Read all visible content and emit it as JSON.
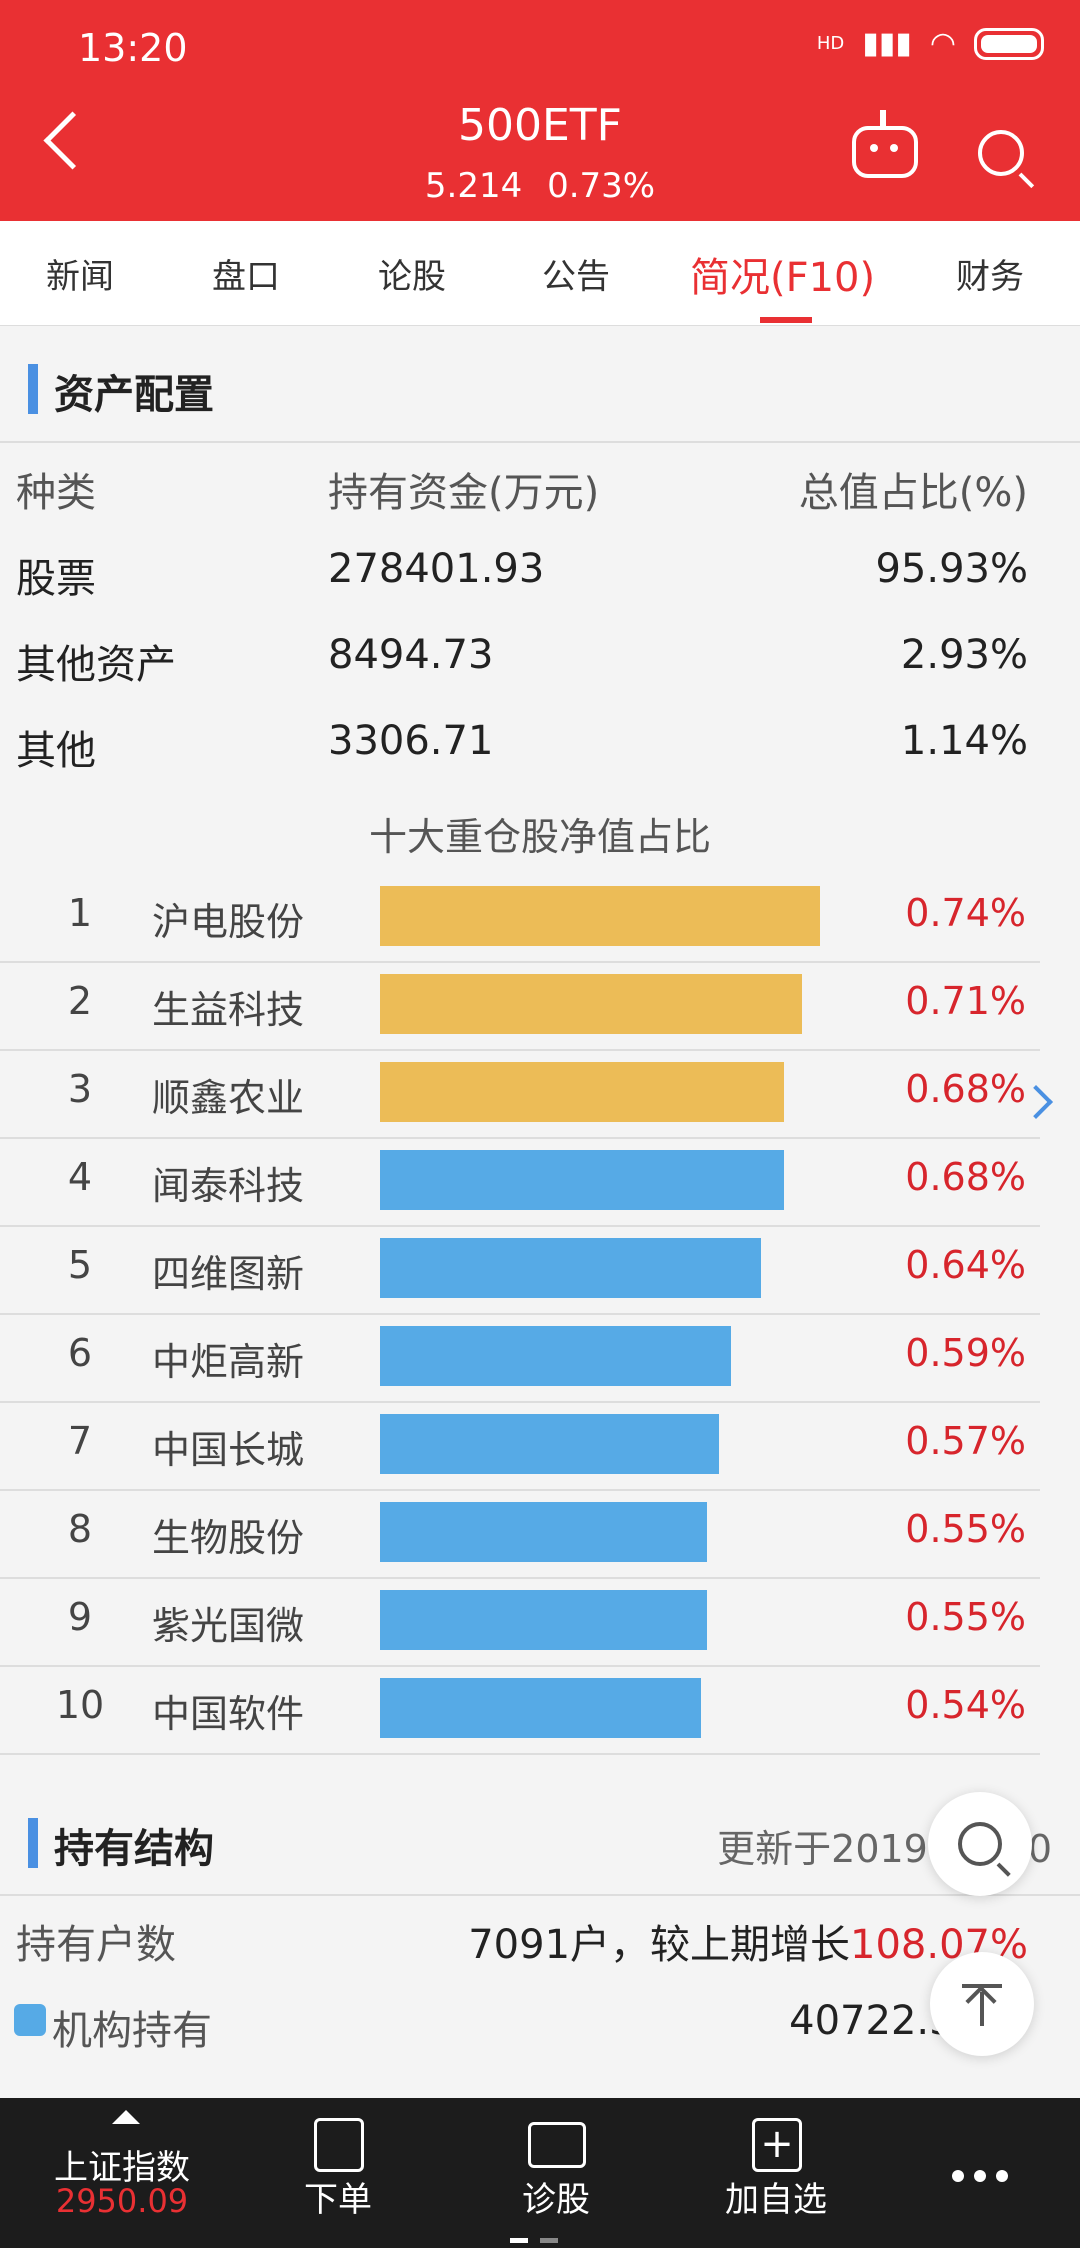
{
  "status": {
    "time": "13:20",
    "network": "HD"
  },
  "header": {
    "title": "500ETF",
    "price": "5.214",
    "change": "0.73%"
  },
  "tabs": [
    {
      "label": "新闻"
    },
    {
      "label": "盘口"
    },
    {
      "label": "论股"
    },
    {
      "label": "公告"
    },
    {
      "label": "简况(F10)",
      "active": true
    },
    {
      "label": "财务"
    }
  ],
  "asset_section": {
    "title": "资产配置",
    "columns": [
      "种类",
      "持有资金(万元)",
      "总值占比(%)"
    ],
    "rows": [
      {
        "type": "股票",
        "amount": "278401.93",
        "ratio": "95.93%"
      },
      {
        "type": "其他资产",
        "amount": "8494.73",
        "ratio": "2.93%"
      },
      {
        "type": "其他",
        "amount": "3306.71",
        "ratio": "1.14%"
      }
    ]
  },
  "chart_data": {
    "type": "bar",
    "title": "十大重仓股净值占比",
    "categories": [
      "沪电股份",
      "生益科技",
      "顺鑫农业",
      "闻泰科技",
      "四维图新",
      "中炬高新",
      "中国长城",
      "生物股份",
      "紫光国微",
      "中国软件"
    ],
    "ranks": [
      "1",
      "2",
      "3",
      "4",
      "5",
      "6",
      "7",
      "8",
      "9",
      "10"
    ],
    "values": [
      0.74,
      0.71,
      0.68,
      0.68,
      0.64,
      0.59,
      0.57,
      0.55,
      0.55,
      0.54
    ],
    "value_labels": [
      "0.74%",
      "0.71%",
      "0.68%",
      "0.68%",
      "0.64%",
      "0.59%",
      "0.57%",
      "0.55%",
      "0.55%",
      "0.54%"
    ],
    "colors": [
      "#ecbc57",
      "#ecbc57",
      "#ecbc57",
      "#56aae6",
      "#56aae6",
      "#56aae6",
      "#56aae6",
      "#56aae6",
      "#56aae6",
      "#56aae6"
    ],
    "xlim": [
      0,
      0.74
    ]
  },
  "holding_section": {
    "title": "持有结构",
    "updated": "更新于2019-06-30",
    "holders_label": "持有户数",
    "holders_value": "7091户，较上期增长",
    "holders_growth": "108.07%",
    "institution_label": "机构持有",
    "institution_value": "40722.39",
    "institution_color": "#56aae6"
  },
  "bottom_nav": [
    {
      "label": "上证指数",
      "value": "2950.09"
    },
    {
      "label": "下单"
    },
    {
      "label": "诊股"
    },
    {
      "label": "加自选"
    },
    {
      "label": "more-icon"
    }
  ],
  "colors": {
    "accent": "#e93033",
    "up": "#d7252c",
    "blue": "#4a90e2"
  }
}
